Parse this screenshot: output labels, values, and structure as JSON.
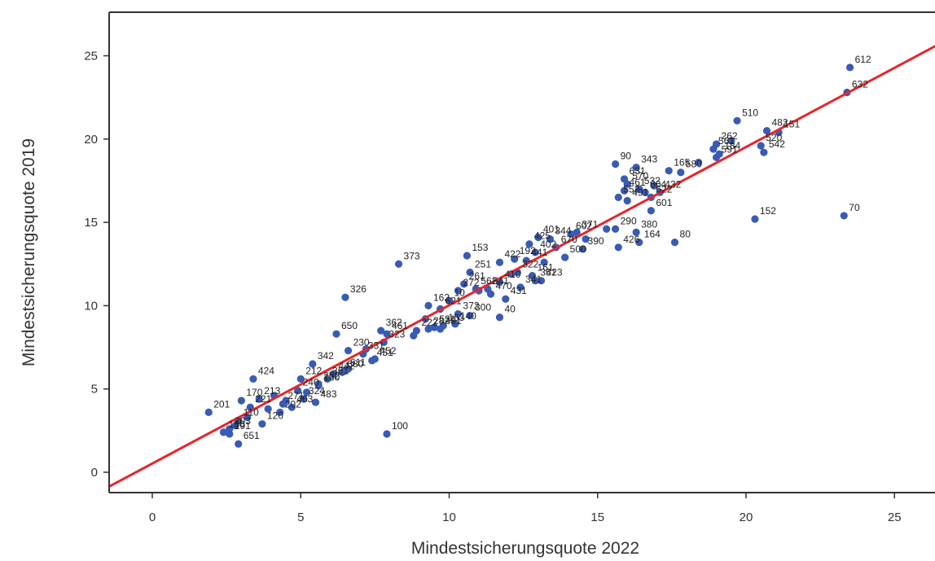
{
  "chart_data": {
    "type": "scatter",
    "title": "",
    "xlabel": "Mindestsicherungsquote 2022",
    "ylabel": "Mindestsicherungsquote 2019",
    "xlim": [
      -1.5,
      26.5
    ],
    "ylim": [
      -0.5,
      27.5
    ],
    "xticks": [
      0,
      5,
      10,
      15,
      20,
      25
    ],
    "yticks": [
      0,
      5,
      10,
      15,
      20,
      25
    ],
    "grid": false,
    "legend": "none",
    "point_color": "#3a5bb5",
    "regression_color": "#e8262c",
    "regression_line": {
      "x": [
        -1.5,
        26.5
      ],
      "y": [
        -0.9,
        25.7
      ]
    },
    "points": [
      {
        "label": "612",
        "x": 23.5,
        "y": 24.3
      },
      {
        "label": "632",
        "x": 23.4,
        "y": 22.8
      },
      {
        "label": "510",
        "x": 19.7,
        "y": 21.1
      },
      {
        "label": "482",
        "x": 20.7,
        "y": 20.5
      },
      {
        "label": "262",
        "x": 19.0,
        "y": 19.7
      },
      {
        "label": "561",
        "x": 18.9,
        "y": 19.4
      },
      {
        "label": "520",
        "x": 20.5,
        "y": 19.6
      },
      {
        "label": "184",
        "x": 19.1,
        "y": 19.1
      },
      {
        "label": "151",
        "x": 21.1,
        "y": 20.4
      },
      {
        "label": "542",
        "x": 20.6,
        "y": 19.2
      },
      {
        "label": "591",
        "x": 19.0,
        "y": 18.9
      },
      {
        "label": "580",
        "x": 17.8,
        "y": 18.0
      },
      {
        "label": "90",
        "x": 15.6,
        "y": 18.5
      },
      {
        "label": "343",
        "x": 16.3,
        "y": 18.3
      },
      {
        "label": "165",
        "x": 17.4,
        "y": 18.1
      },
      {
        "label": "631",
        "x": 15.9,
        "y": 17.6
      },
      {
        "label": "570",
        "x": 16.0,
        "y": 17.3
      },
      {
        "label": "532",
        "x": 16.4,
        "y": 17.0
      },
      {
        "label": "461",
        "x": 15.9,
        "y": 16.9
      },
      {
        "label": "604",
        "x": 16.6,
        "y": 16.8
      },
      {
        "label": "432",
        "x": 17.1,
        "y": 16.8
      },
      {
        "label": "552",
        "x": 15.7,
        "y": 16.5
      },
      {
        "label": "491",
        "x": 16.0,
        "y": 16.3
      },
      {
        "label": "622",
        "x": 16.8,
        "y": 16.5
      },
      {
        "label": "152",
        "x": 20.3,
        "y": 15.2
      },
      {
        "label": "70",
        "x": 23.3,
        "y": 15.4
      },
      {
        "label": "601",
        "x": 16.8,
        "y": 15.7
      },
      {
        "label": "290",
        "x": 15.6,
        "y": 14.6
      },
      {
        "label": "380",
        "x": 16.3,
        "y": 14.4
      },
      {
        "label": "80",
        "x": 17.6,
        "y": 13.8
      },
      {
        "label": "164",
        "x": 16.4,
        "y": 13.8
      },
      {
        "label": "426",
        "x": 15.7,
        "y": 13.5
      },
      {
        "label": "602",
        "x": 14.1,
        "y": 14.3
      },
      {
        "label": "371",
        "x": 14.3,
        "y": 14.4
      },
      {
        "label": "390",
        "x": 14.5,
        "y": 13.4
      },
      {
        "label": "500",
        "x": 13.9,
        "y": 12.9
      },
      {
        "label": "670",
        "x": 13.6,
        "y": 13.5
      },
      {
        "label": "401",
        "x": 13.0,
        "y": 14.1
      },
      {
        "label": "425",
        "x": 12.7,
        "y": 13.7
      },
      {
        "label": "344",
        "x": 13.4,
        "y": 14.0
      },
      {
        "label": "402",
        "x": 12.9,
        "y": 13.2
      },
      {
        "label": "441",
        "x": 12.6,
        "y": 12.7
      },
      {
        "label": "322",
        "x": 12.3,
        "y": 12.0
      },
      {
        "label": "192",
        "x": 12.2,
        "y": 12.8
      },
      {
        "label": "153",
        "x": 10.6,
        "y": 13.0
      },
      {
        "label": "422",
        "x": 11.7,
        "y": 12.6
      },
      {
        "label": "161",
        "x": 12.8,
        "y": 11.8
      },
      {
        "label": "423",
        "x": 13.1,
        "y": 11.5
      },
      {
        "label": "410",
        "x": 11.7,
        "y": 11.4
      },
      {
        "label": "341",
        "x": 12.4,
        "y": 11.1
      },
      {
        "label": "351",
        "x": 12.9,
        "y": 11.5
      },
      {
        "label": "470",
        "x": 11.4,
        "y": 10.7
      },
      {
        "label": "431",
        "x": 11.9,
        "y": 10.4
      },
      {
        "label": "40",
        "x": 11.7,
        "y": 9.3
      },
      {
        "label": "373",
        "x": 8.3,
        "y": 12.5
      },
      {
        "label": "251",
        "x": 10.7,
        "y": 12.0
      },
      {
        "label": "261",
        "x": 10.5,
        "y": 11.3
      },
      {
        "label": "562",
        "x": 10.9,
        "y": 11.0
      },
      {
        "label": "541",
        "x": 11.3,
        "y": 11.0
      },
      {
        "label": "272",
        "x": 10.3,
        "y": 10.9
      },
      {
        "label": "162",
        "x": 9.3,
        "y": 10.0
      },
      {
        "label": "10",
        "x": 10.0,
        "y": 10.3
      },
      {
        "label": "621",
        "x": 9.7,
        "y": 9.8
      },
      {
        "label": "372",
        "x": 10.3,
        "y": 9.5
      },
      {
        "label": "300",
        "x": 10.7,
        "y": 9.4
      },
      {
        "label": "140",
        "x": 10.2,
        "y": 8.9
      },
      {
        "label": "163",
        "x": 9.8,
        "y": 8.8
      },
      {
        "label": "531",
        "x": 9.5,
        "y": 8.7
      },
      {
        "label": "481",
        "x": 9.7,
        "y": 8.6
      },
      {
        "label": "282",
        "x": 9.3,
        "y": 8.6
      },
      {
        "label": "222",
        "x": 8.9,
        "y": 8.5
      },
      {
        "label": "326",
        "x": 6.5,
        "y": 10.5
      },
      {
        "label": "650",
        "x": 6.2,
        "y": 8.3
      },
      {
        "label": "362",
        "x": 7.7,
        "y": 8.5
      },
      {
        "label": "461b",
        "x": 7.9,
        "y": 8.3
      },
      {
        "label": "323",
        "x": 7.8,
        "y": 7.8
      },
      {
        "label": "331",
        "x": 7.1,
        "y": 7.1
      },
      {
        "label": "230",
        "x": 6.6,
        "y": 7.3
      },
      {
        "label": "342",
        "x": 5.4,
        "y": 6.5
      },
      {
        "label": "451",
        "x": 7.4,
        "y": 6.7
      },
      {
        "label": "452",
        "x": 7.5,
        "y": 6.8
      },
      {
        "label": "611",
        "x": 6.5,
        "y": 6.1
      },
      {
        "label": "680",
        "x": 6.4,
        "y": 6.0
      },
      {
        "label": "442",
        "x": 6.1,
        "y": 5.9
      },
      {
        "label": "424",
        "x": 3.4,
        "y": 5.6
      },
      {
        "label": "212",
        "x": 5.0,
        "y": 5.6
      },
      {
        "label": "240",
        "x": 4.9,
        "y": 4.9
      },
      {
        "label": "361",
        "x": 5.9,
        "y": 5.6
      },
      {
        "label": "252",
        "x": 5.6,
        "y": 5.3
      },
      {
        "label": "130",
        "x": 5.6,
        "y": 5.2
      },
      {
        "label": "170",
        "x": 3.0,
        "y": 4.3
      },
      {
        "label": "213",
        "x": 3.6,
        "y": 4.4
      },
      {
        "label": "221",
        "x": 3.3,
        "y": 3.9
      },
      {
        "label": "271",
        "x": 4.4,
        "y": 4.1
      },
      {
        "label": "324",
        "x": 5.1,
        "y": 4.4
      },
      {
        "label": "483",
        "x": 5.5,
        "y": 4.2
      },
      {
        "label": "201",
        "x": 1.9,
        "y": 3.6
      },
      {
        "label": "110",
        "x": 2.9,
        "y": 3.1
      },
      {
        "label": "120",
        "x": 3.7,
        "y": 2.9
      },
      {
        "label": "203",
        "x": 2.6,
        "y": 2.6
      },
      {
        "label": "202",
        "x": 4.3,
        "y": 3.6
      },
      {
        "label": "463",
        "x": 4.7,
        "y": 3.9
      },
      {
        "label": "180",
        "x": 2.4,
        "y": 2.4
      },
      {
        "label": "191",
        "x": 2.6,
        "y": 2.3
      },
      {
        "label": "651",
        "x": 2.9,
        "y": 1.7
      },
      {
        "label": "100",
        "x": 7.9,
        "y": 2.3
      }
    ],
    "extra_points": [
      {
        "x": 4.1,
        "y": 4.6
      },
      {
        "x": 4.5,
        "y": 4.3
      },
      {
        "x": 3.9,
        "y": 3.8
      },
      {
        "x": 5.2,
        "y": 4.8
      },
      {
        "x": 6.6,
        "y": 6.2
      },
      {
        "x": 7.2,
        "y": 7.4
      },
      {
        "x": 8.8,
        "y": 8.2
      },
      {
        "x": 9.2,
        "y": 9.2
      },
      {
        "x": 11.0,
        "y": 10.9
      },
      {
        "x": 12.1,
        "y": 11.9
      },
      {
        "x": 13.2,
        "y": 12.6
      },
      {
        "x": 14.6,
        "y": 14.0
      },
      {
        "x": 15.3,
        "y": 14.6
      },
      {
        "x": 16.9,
        "y": 17.2
      },
      {
        "x": 18.4,
        "y": 18.6
      },
      {
        "x": 19.5,
        "y": 19.9
      },
      {
        "x": 2.8,
        "y": 2.8
      },
      {
        "x": 3.2,
        "y": 3.3
      }
    ]
  }
}
